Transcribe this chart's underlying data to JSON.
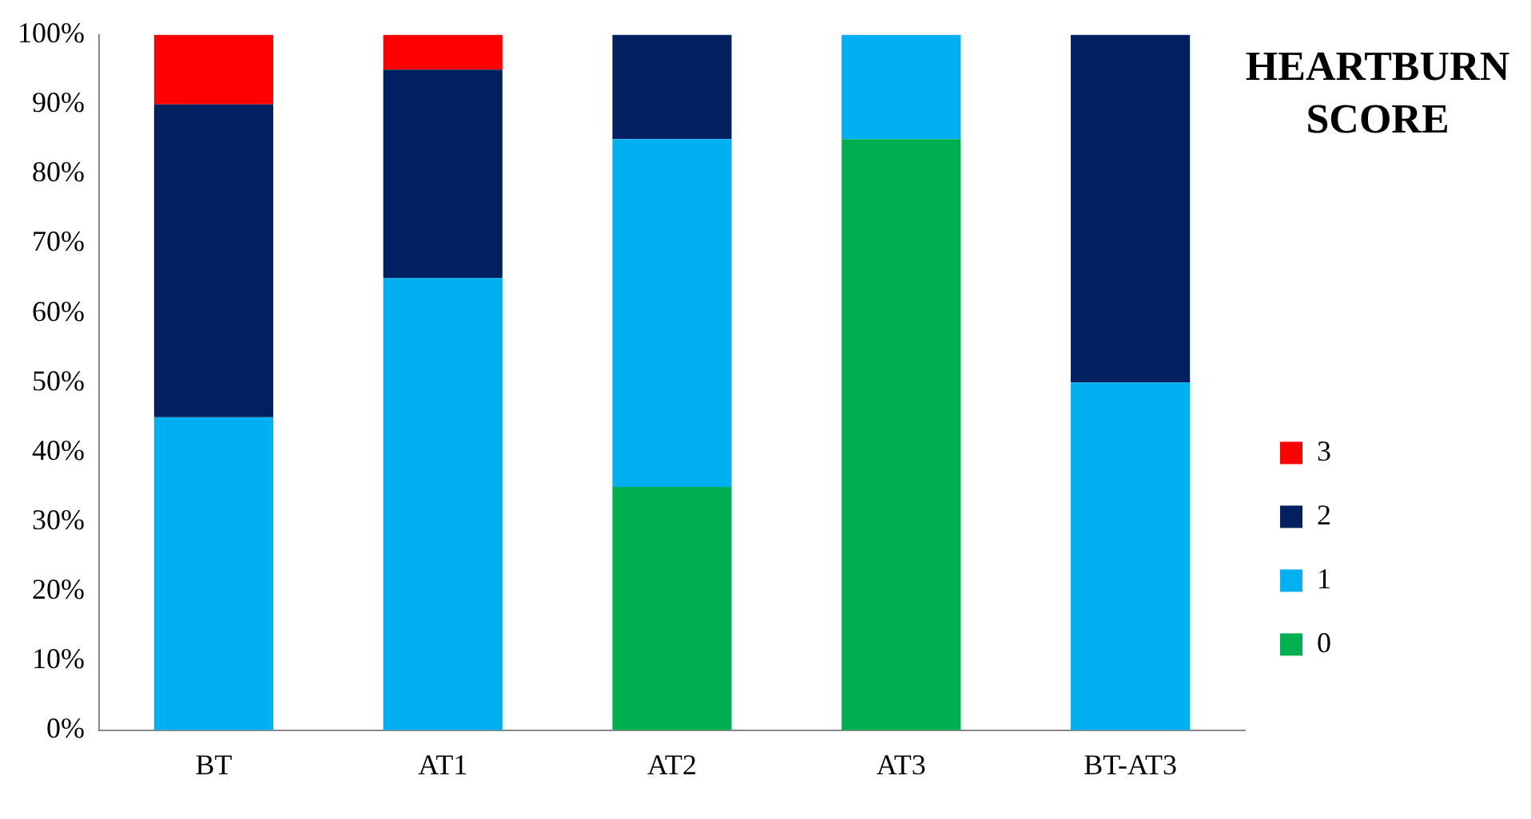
{
  "chart_data": {
    "type": "bar",
    "stacked": true,
    "legend_title": "HEARTBURN SCORE",
    "legend": "right",
    "categories": [
      "BT",
      "AT1",
      "AT2",
      "AT3",
      "BT-AT3"
    ],
    "series": [
      {
        "name": "0",
        "color": "#00b050",
        "values": [
          0,
          0,
          35,
          85,
          0
        ]
      },
      {
        "name": "1",
        "color": "#00b0f0",
        "values": [
          45,
          65,
          50,
          15,
          50
        ]
      },
      {
        "name": "2",
        "color": "#002060",
        "values": [
          45,
          30,
          15,
          0,
          50
        ]
      },
      {
        "name": "3",
        "color": "#ff0000",
        "values": [
          10,
          5,
          0,
          0,
          0
        ]
      }
    ],
    "ylim": [
      0,
      100
    ],
    "yticks": [
      {
        "value": 0,
        "label": "0%"
      },
      {
        "value": 10,
        "label": "10%"
      },
      {
        "value": 20,
        "label": "20%"
      },
      {
        "value": 30,
        "label": "30%"
      },
      {
        "value": 40,
        "label": "40%"
      },
      {
        "value": 50,
        "label": "50%"
      },
      {
        "value": 60,
        "label": "60%"
      },
      {
        "value": 70,
        "label": "70%"
      },
      {
        "value": 80,
        "label": "80%"
      },
      {
        "value": 90,
        "label": "90%"
      },
      {
        "value": 100,
        "label": "100%"
      }
    ],
    "grid": false
  }
}
